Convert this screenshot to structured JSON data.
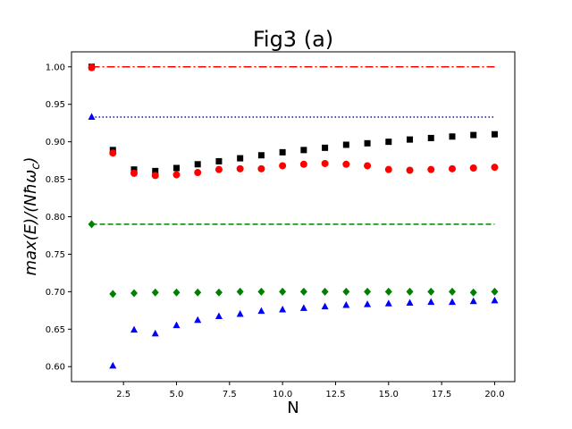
{
  "chart_data": {
    "type": "scatter",
    "title": "Fig3 (a)",
    "xlabel": "N",
    "ylabel": "max(E)/(Nħω_c)",
    "xlim": [
      0.05,
      20.95
    ],
    "ylim": [
      0.58,
      1.02
    ],
    "xticks": [
      2.5,
      5.0,
      7.5,
      10.0,
      12.5,
      15.0,
      17.5,
      20.0
    ],
    "xtick_labels": [
      "2.5",
      "5.0",
      "7.5",
      "10.0",
      "12.5",
      "15.0",
      "17.5",
      "20.0"
    ],
    "yticks": [
      0.6,
      0.65,
      0.7,
      0.75,
      0.8,
      0.85,
      0.9,
      0.95,
      1.0
    ],
    "ytick_labels": [
      "0.60",
      "0.65",
      "0.70",
      "0.75",
      "0.80",
      "0.85",
      "0.90",
      "0.95",
      "1.00"
    ],
    "grid": false,
    "reference_lines": [
      {
        "y": 1.0,
        "x": [
          1,
          20
        ],
        "color": "#ff0000",
        "dash": "dashdot"
      },
      {
        "y": 0.933,
        "x": [
          1,
          20
        ],
        "color": "#0000ff",
        "dash": "dotted"
      },
      {
        "y": 0.79,
        "x": [
          1,
          20
        ],
        "color": "#008000",
        "dash": "dashed"
      }
    ],
    "series": [
      {
        "marker": "square",
        "color": "#000000",
        "x": [
          1,
          2,
          3,
          4,
          5,
          6,
          7,
          8,
          9,
          10,
          11,
          12,
          13,
          14,
          15,
          16,
          17,
          18,
          19,
          20
        ],
        "y": [
          1.0,
          0.889,
          0.863,
          0.861,
          0.865,
          0.87,
          0.874,
          0.878,
          0.882,
          0.886,
          0.889,
          0.892,
          0.896,
          0.898,
          0.9,
          0.903,
          0.905,
          0.907,
          0.909,
          0.91
        ]
      },
      {
        "marker": "circle",
        "color": "#ff0000",
        "x": [
          1,
          2,
          3,
          4,
          5,
          6,
          7,
          8,
          9,
          10,
          11,
          12,
          13,
          14,
          15,
          16,
          17,
          18,
          19,
          20
        ],
        "y": [
          0.999,
          0.885,
          0.858,
          0.855,
          0.856,
          0.859,
          0.863,
          0.864,
          0.864,
          0.868,
          0.87,
          0.871,
          0.87,
          0.868,
          0.863,
          0.862,
          0.863,
          0.864,
          0.865,
          0.866
        ]
      },
      {
        "marker": "triangle",
        "color": "#0000ff",
        "x": [
          1,
          2,
          3,
          4,
          5,
          6,
          7,
          8,
          9,
          10,
          11,
          12,
          13,
          14,
          15,
          16,
          17,
          18,
          19,
          20
        ],
        "y": [
          0.933,
          0.601,
          0.649,
          0.644,
          0.655,
          0.662,
          0.667,
          0.67,
          0.674,
          0.676,
          0.678,
          0.68,
          0.682,
          0.683,
          0.684,
          0.685,
          0.686,
          0.686,
          0.687,
          0.688
        ]
      },
      {
        "marker": "diamond",
        "color": "#008000",
        "x": [
          1,
          2,
          3,
          4,
          5,
          6,
          7,
          8,
          9,
          10,
          11,
          12,
          13,
          14,
          15,
          16,
          17,
          18,
          19,
          20
        ],
        "y": [
          0.79,
          0.697,
          0.698,
          0.699,
          0.699,
          0.699,
          0.699,
          0.7,
          0.7,
          0.7,
          0.7,
          0.7,
          0.7,
          0.7,
          0.7,
          0.7,
          0.7,
          0.7,
          0.699,
          0.7
        ]
      }
    ]
  }
}
